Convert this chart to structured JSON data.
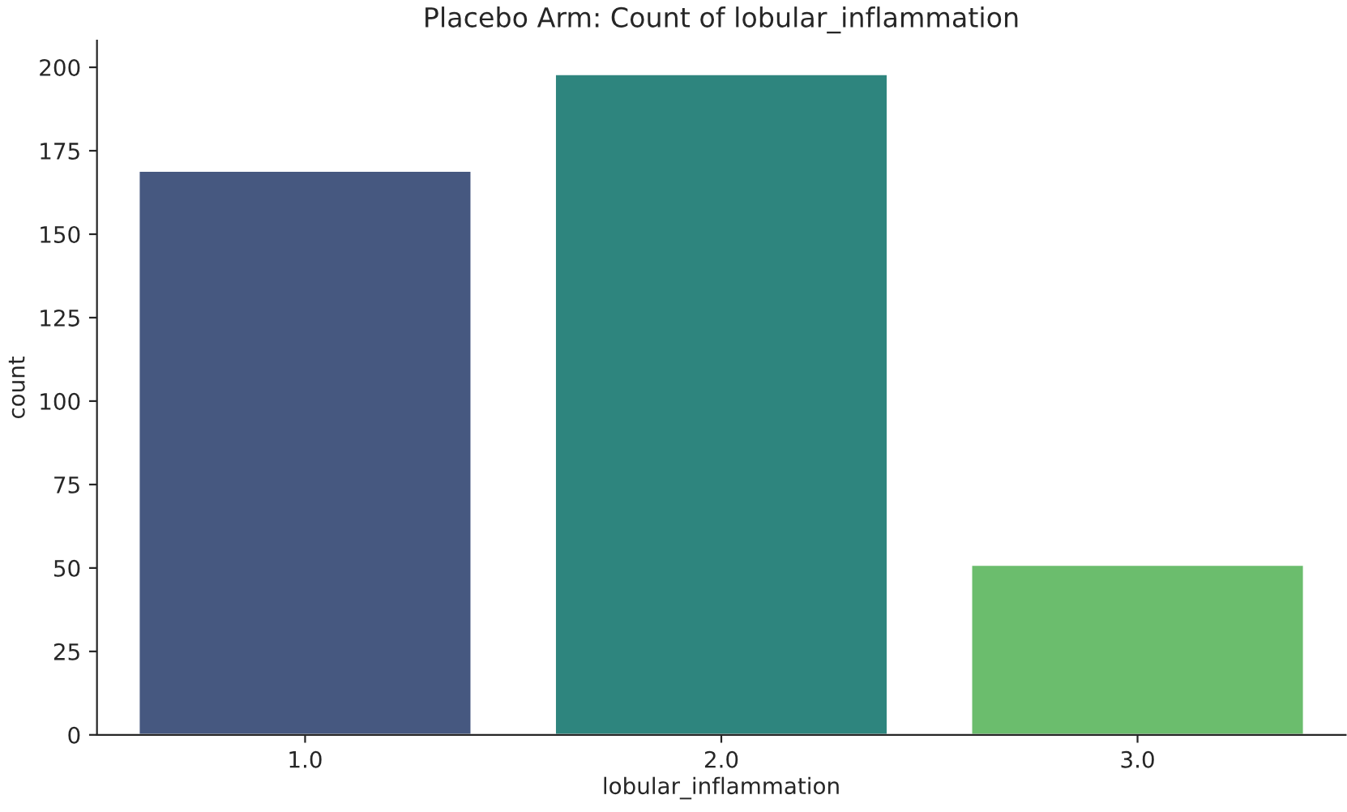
{
  "chart_data": {
    "type": "bar",
    "title": "Placebo Arm: Count of lobular_inflammation",
    "xlabel": "lobular_inflammation",
    "ylabel": "count",
    "categories": [
      "1.0",
      "2.0",
      "3.0"
    ],
    "values": [
      169,
      198,
      51
    ],
    "colors": [
      "#465880",
      "#2e857e",
      "#6bbd6d"
    ],
    "ylim": [
      0,
      208
    ],
    "yticks": [
      0,
      25,
      50,
      75,
      100,
      125,
      150,
      175,
      200
    ],
    "grid": false
  }
}
